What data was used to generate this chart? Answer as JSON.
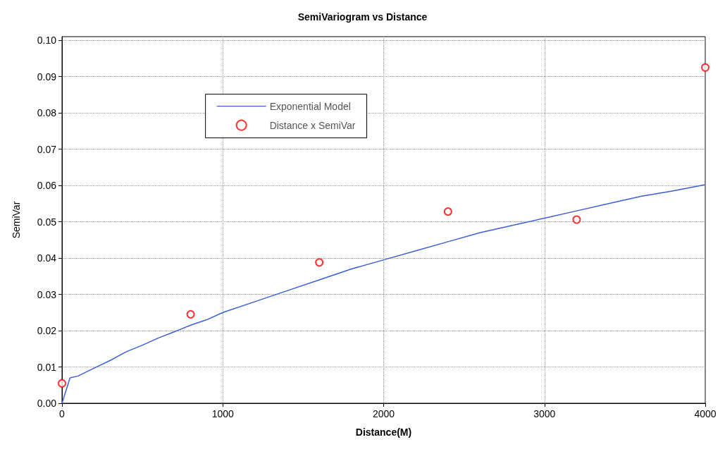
{
  "chart_data": {
    "type": "line",
    "title": "SemiVariogram vs Distance",
    "xlabel": "Distance(M)",
    "ylabel": "SemiVar",
    "xlim": [
      0,
      4000
    ],
    "xticks": [
      0,
      1000,
      2000,
      3000,
      4000
    ],
    "ylim": [
      0,
      0.101
    ],
    "yticks": [
      {
        "value": 0,
        "label": "0.00"
      },
      {
        "value": 0.01,
        "label": "0.01"
      },
      {
        "value": 0.02,
        "label": "0.02"
      },
      {
        "value": 0.03,
        "label": "0.03"
      },
      {
        "value": 0.04,
        "label": "0.04"
      },
      {
        "value": 0.05,
        "label": "0.05"
      },
      {
        "value": 0.06,
        "label": "0.06"
      },
      {
        "value": 0.07,
        "label": "0.07"
      },
      {
        "value": 0.08,
        "label": "0.08"
      },
      {
        "value": 0.09,
        "label": "0.09"
      },
      {
        "value": 0.1,
        "label": "0.10"
      }
    ],
    "grid": true,
    "legend": "top left",
    "series": [
      {
        "name": "Exponential Model",
        "type": "line",
        "color": "#3a5fd6",
        "marker": "none",
        "line_style": "solid",
        "x": [
          0,
          50,
          100,
          200,
          300,
          400,
          500,
          600,
          700,
          800,
          900,
          1000,
          1200,
          1400,
          1600,
          1800,
          2000,
          2200,
          2400,
          2600,
          2800,
          3000,
          3200,
          3400,
          3600,
          3800,
          4000
        ],
        "values": [
          0,
          0.007,
          0.0075,
          0.0097,
          0.0118,
          0.0142,
          0.016,
          0.018,
          0.0197,
          0.0215,
          0.023,
          0.025,
          0.028,
          0.031,
          0.034,
          0.037,
          0.0395,
          0.042,
          0.0445,
          0.047,
          0.049,
          0.051,
          0.053,
          0.055,
          0.057,
          0.0585,
          0.0602
        ]
      },
      {
        "name": "Distance x SemiVar",
        "type": "scatter",
        "color": "#ff0000",
        "marker": "circle",
        "x": [
          0,
          800,
          1600,
          2400,
          3200,
          4000
        ],
        "values": [
          0.0055,
          0.0245,
          0.0388,
          0.0528,
          0.0506,
          0.0925
        ]
      }
    ]
  }
}
